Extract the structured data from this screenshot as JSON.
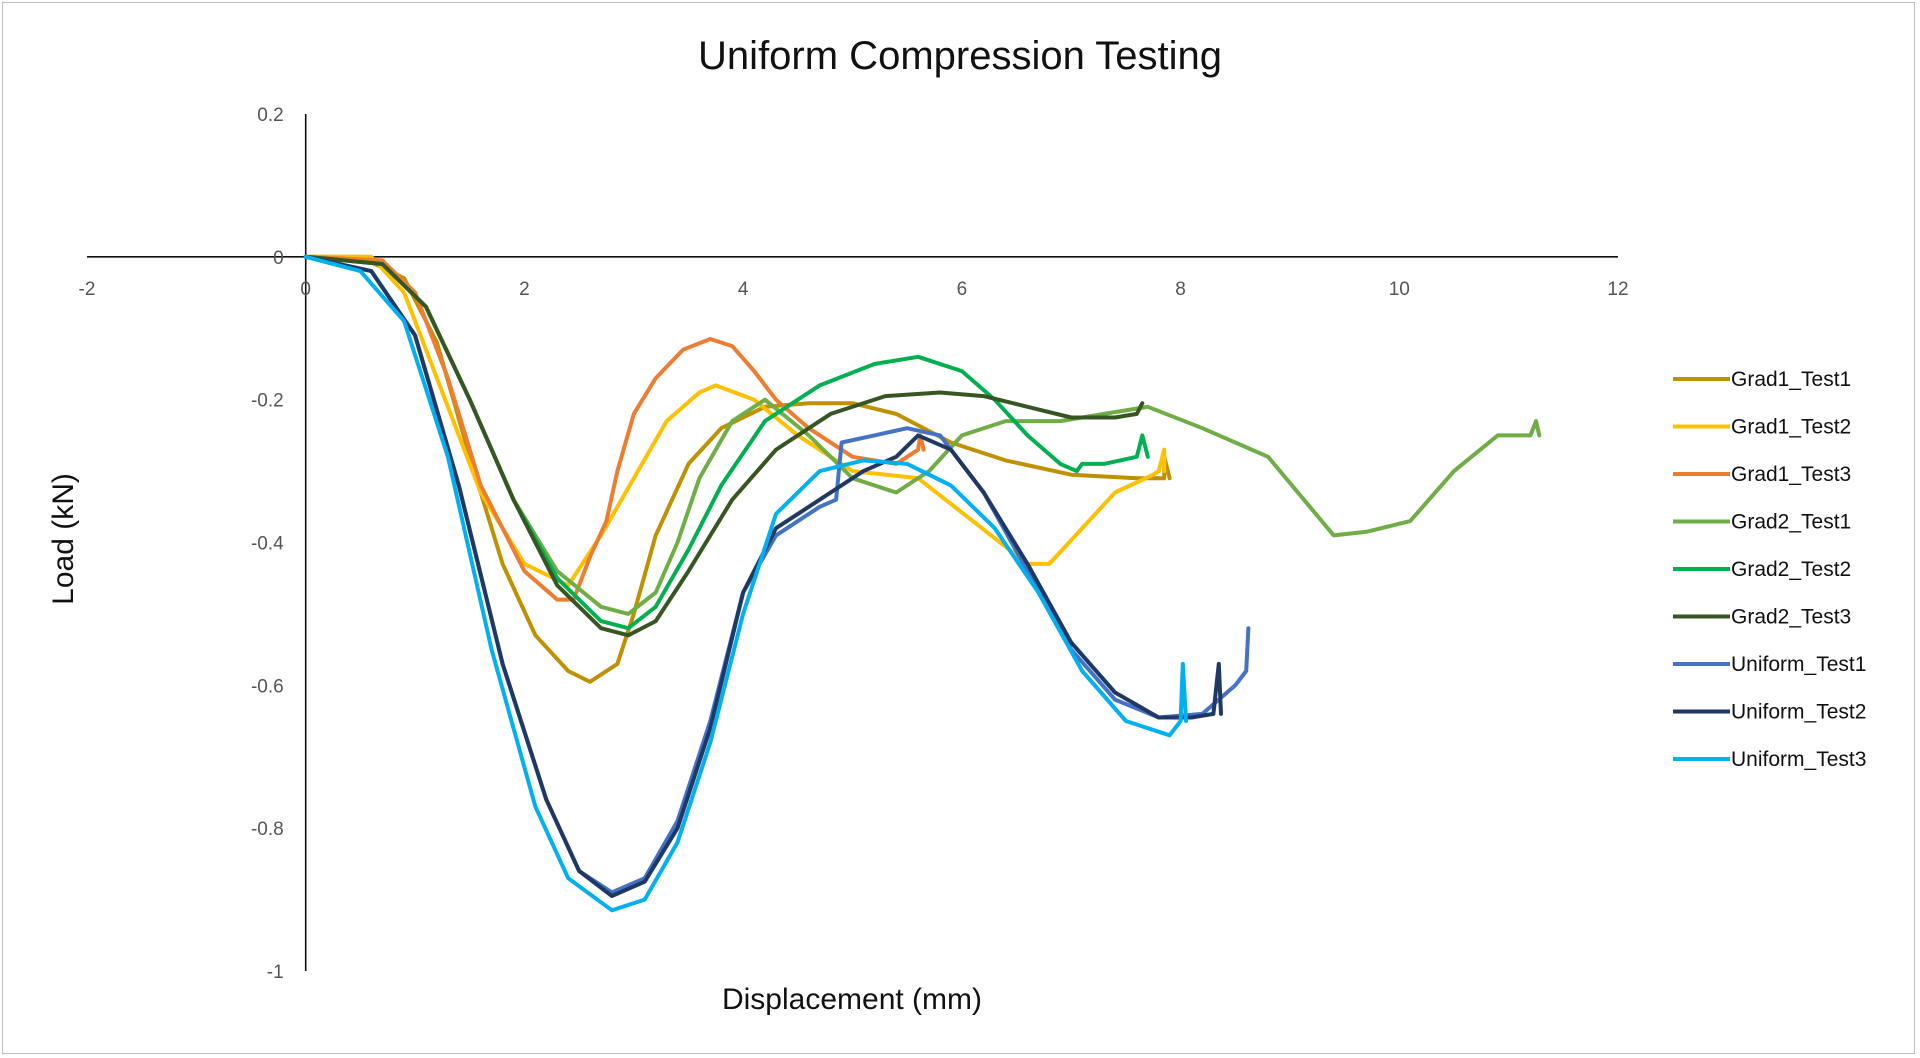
{
  "chart_data": {
    "type": "line",
    "title": "Uniform Compression Testing",
    "xlabel": "Displacement (mm)",
    "ylabel": "Load (kN)",
    "xlim": [
      -2,
      12
    ],
    "ylim": [
      -1,
      0.2
    ],
    "xticks": [
      -2,
      0,
      2,
      4,
      6,
      8,
      10,
      12
    ],
    "yticks": [
      0.2,
      0,
      -0.2,
      -0.4,
      -0.6,
      -0.8,
      -1
    ],
    "xtick_labels": [
      "-2",
      "0",
      "2",
      "4",
      "6",
      "8",
      "10",
      "12"
    ],
    "ytick_labels": [
      "0.2",
      "0",
      "-0.2",
      "-0.4",
      "-0.6",
      "-0.8",
      "-1"
    ],
    "grid": false,
    "legend_position": "right",
    "series": [
      {
        "name": "Grad1_Test1",
        "color": "#bf9000",
        "x": [
          0,
          0.5,
          0.9,
          1.2,
          1.5,
          1.8,
          2.1,
          2.4,
          2.6,
          2.85,
          3.0,
          3.2,
          3.5,
          3.8,
          4.2,
          4.6,
          5.0,
          5.4,
          5.9,
          6.4,
          7.0,
          7.6,
          7.85,
          7.85,
          7.9
        ],
        "y": [
          0,
          0,
          -0.03,
          -0.12,
          -0.28,
          -0.43,
          -0.53,
          -0.58,
          -0.595,
          -0.57,
          -0.5,
          -0.39,
          -0.29,
          -0.24,
          -0.21,
          -0.205,
          -0.205,
          -0.22,
          -0.26,
          -0.285,
          -0.305,
          -0.31,
          -0.31,
          -0.28,
          -0.31
        ]
      },
      {
        "name": "Grad1_Test2",
        "color": "#ffc000",
        "x": [
          0,
          0.6,
          0.9,
          1.2,
          1.6,
          2.0,
          2.4,
          2.7,
          3.0,
          3.3,
          3.6,
          3.75,
          4.1,
          4.5,
          5.0,
          5.6,
          6.1,
          6.6,
          6.8,
          7.1,
          7.4,
          7.75,
          7.8,
          7.85,
          7.85
        ],
        "y": [
          0,
          0,
          -0.05,
          -0.17,
          -0.33,
          -0.43,
          -0.46,
          -0.39,
          -0.31,
          -0.23,
          -0.19,
          -0.18,
          -0.2,
          -0.25,
          -0.3,
          -0.31,
          -0.37,
          -0.43,
          -0.43,
          -0.38,
          -0.33,
          -0.305,
          -0.3,
          -0.27,
          -0.3
        ]
      },
      {
        "name": "Grad1_Test3",
        "color": "#ed7d31",
        "x": [
          0,
          0.7,
          1.0,
          1.3,
          1.6,
          2.0,
          2.3,
          2.45,
          2.6,
          2.75,
          2.85,
          3.0,
          3.2,
          3.45,
          3.7,
          3.9,
          4.1,
          4.3,
          4.6,
          5.0,
          5.4,
          5.6,
          5.62,
          5.65
        ],
        "y": [
          0,
          -0.005,
          -0.05,
          -0.17,
          -0.32,
          -0.44,
          -0.48,
          -0.48,
          -0.42,
          -0.37,
          -0.3,
          -0.22,
          -0.17,
          -0.13,
          -0.115,
          -0.125,
          -0.16,
          -0.2,
          -0.24,
          -0.28,
          -0.29,
          -0.27,
          -0.25,
          -0.27
        ]
      },
      {
        "name": "Grad2_Test1",
        "color": "#70ad47",
        "x": [
          0,
          0.7,
          1.1,
          1.5,
          1.9,
          2.3,
          2.7,
          2.95,
          3.2,
          3.4,
          3.6,
          3.9,
          4.2,
          4.6,
          5.0,
          5.4,
          5.7,
          6.0,
          6.4,
          6.9,
          7.3,
          7.7,
          8.2,
          8.8,
          9.4,
          9.7,
          10.1,
          10.5,
          10.9,
          11.2,
          11.25,
          11.28
        ],
        "y": [
          0,
          -0.01,
          -0.07,
          -0.2,
          -0.34,
          -0.44,
          -0.49,
          -0.5,
          -0.47,
          -0.4,
          -0.31,
          -0.23,
          -0.2,
          -0.25,
          -0.31,
          -0.33,
          -0.3,
          -0.25,
          -0.23,
          -0.23,
          -0.22,
          -0.21,
          -0.24,
          -0.28,
          -0.39,
          -0.385,
          -0.37,
          -0.3,
          -0.25,
          -0.25,
          -0.23,
          -0.25
        ]
      },
      {
        "name": "Grad2_Test2",
        "color": "#00b050",
        "x": [
          0,
          0.7,
          1.1,
          1.5,
          1.9,
          2.3,
          2.7,
          2.95,
          3.2,
          3.5,
          3.8,
          4.2,
          4.7,
          5.2,
          5.6,
          6.0,
          6.3,
          6.6,
          6.9,
          7.05,
          7.1,
          7.3,
          7.6,
          7.65,
          7.7
        ],
        "y": [
          0,
          -0.01,
          -0.07,
          -0.2,
          -0.34,
          -0.45,
          -0.51,
          -0.52,
          -0.49,
          -0.41,
          -0.32,
          -0.23,
          -0.18,
          -0.15,
          -0.14,
          -0.16,
          -0.2,
          -0.25,
          -0.29,
          -0.3,
          -0.29,
          -0.29,
          -0.28,
          -0.25,
          -0.28
        ]
      },
      {
        "name": "Grad2_Test3",
        "color": "#375623",
        "x": [
          0,
          0.7,
          1.1,
          1.5,
          1.9,
          2.3,
          2.7,
          2.95,
          3.2,
          3.5,
          3.9,
          4.3,
          4.8,
          5.3,
          5.8,
          6.2,
          6.6,
          7.0,
          7.4,
          7.6,
          7.65
        ],
        "y": [
          0,
          -0.01,
          -0.07,
          -0.2,
          -0.34,
          -0.46,
          -0.52,
          -0.53,
          -0.51,
          -0.44,
          -0.34,
          -0.27,
          -0.22,
          -0.195,
          -0.19,
          -0.195,
          -0.21,
          -0.225,
          -0.225,
          -0.22,
          -0.205
        ]
      },
      {
        "name": "Uniform_Test1",
        "color": "#4472c4",
        "x": [
          0,
          0.6,
          1.0,
          1.4,
          1.8,
          2.2,
          2.5,
          2.8,
          3.1,
          3.4,
          3.7,
          4.0,
          4.3,
          4.7,
          4.85,
          4.9,
          5.2,
          5.5,
          5.8,
          6.2,
          6.6,
          7.0,
          7.4,
          7.8,
          8.2,
          8.5,
          8.6,
          8.62
        ],
        "y": [
          0,
          -0.02,
          -0.11,
          -0.32,
          -0.57,
          -0.76,
          -0.86,
          -0.89,
          -0.87,
          -0.79,
          -0.65,
          -0.47,
          -0.39,
          -0.35,
          -0.34,
          -0.26,
          -0.25,
          -0.24,
          -0.25,
          -0.33,
          -0.44,
          -0.55,
          -0.62,
          -0.645,
          -0.64,
          -0.6,
          -0.58,
          -0.52
        ]
      },
      {
        "name": "Uniform_Test2",
        "color": "#203864",
        "x": [
          0,
          0.6,
          1.0,
          1.4,
          1.8,
          2.2,
          2.5,
          2.8,
          3.1,
          3.4,
          3.7,
          4.0,
          4.3,
          4.7,
          5.1,
          5.4,
          5.6,
          5.9,
          6.2,
          6.6,
          7.0,
          7.4,
          7.8,
          8.1,
          8.3,
          8.35,
          8.37
        ],
        "y": [
          0,
          -0.02,
          -0.11,
          -0.32,
          -0.57,
          -0.76,
          -0.86,
          -0.895,
          -0.875,
          -0.8,
          -0.66,
          -0.47,
          -0.38,
          -0.34,
          -0.3,
          -0.28,
          -0.25,
          -0.27,
          -0.33,
          -0.43,
          -0.54,
          -0.61,
          -0.645,
          -0.645,
          -0.64,
          -0.57,
          -0.64
        ]
      },
      {
        "name": "Uniform_Test3",
        "color": "#00b0f0",
        "x": [
          0,
          0.5,
          0.9,
          1.3,
          1.7,
          2.1,
          2.4,
          2.8,
          3.1,
          3.4,
          3.7,
          4.0,
          4.3,
          4.7,
          5.1,
          5.5,
          5.9,
          6.3,
          6.7,
          7.1,
          7.5,
          7.9,
          8.0,
          8.02,
          8.05
        ],
        "y": [
          0,
          -0.02,
          -0.09,
          -0.28,
          -0.55,
          -0.77,
          -0.87,
          -0.915,
          -0.9,
          -0.82,
          -0.68,
          -0.5,
          -0.36,
          -0.3,
          -0.285,
          -0.29,
          -0.32,
          -0.38,
          -0.47,
          -0.58,
          -0.65,
          -0.67,
          -0.65,
          -0.57,
          -0.65
        ]
      }
    ]
  }
}
